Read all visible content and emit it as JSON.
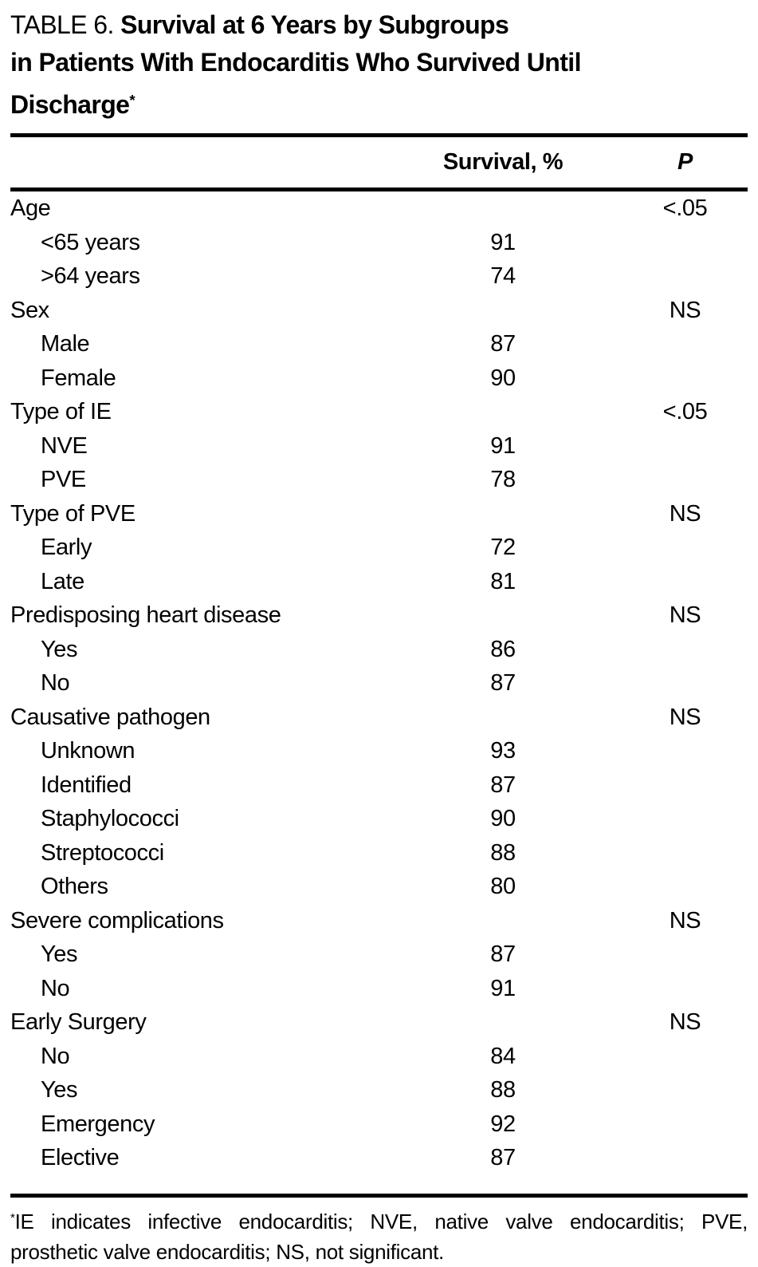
{
  "title": {
    "prefix": "TABLE 6. ",
    "line1": "Survival at 6 Years by Subgroups",
    "line2": "in Patients With Endocarditis Who Survived Until",
    "line3": "Discharge",
    "marker": "*"
  },
  "table": {
    "header": {
      "survival": "Survival, %",
      "p": "P"
    },
    "rows": [
      {
        "label": "Age",
        "indent": false,
        "survival": "",
        "p": "<.05"
      },
      {
        "label": "<65 years",
        "indent": true,
        "survival": "91",
        "p": ""
      },
      {
        "label": ">64 years",
        "indent": true,
        "survival": "74",
        "p": ""
      },
      {
        "label": "Sex",
        "indent": false,
        "survival": "",
        "p": "NS"
      },
      {
        "label": "Male",
        "indent": true,
        "survival": "87",
        "p": ""
      },
      {
        "label": "Female",
        "indent": true,
        "survival": "90",
        "p": ""
      },
      {
        "label": "Type of IE",
        "indent": false,
        "survival": "",
        "p": "<.05"
      },
      {
        "label": "NVE",
        "indent": true,
        "survival": "91",
        "p": ""
      },
      {
        "label": "PVE",
        "indent": true,
        "survival": "78",
        "p": ""
      },
      {
        "label": "Type of PVE",
        "indent": false,
        "survival": "",
        "p": "NS"
      },
      {
        "label": "Early",
        "indent": true,
        "survival": "72",
        "p": ""
      },
      {
        "label": "Late",
        "indent": true,
        "survival": "81",
        "p": ""
      },
      {
        "label": "Predisposing heart disease",
        "indent": false,
        "survival": "",
        "p": "NS"
      },
      {
        "label": "Yes",
        "indent": true,
        "survival": "86",
        "p": ""
      },
      {
        "label": "No",
        "indent": true,
        "survival": "87",
        "p": ""
      },
      {
        "label": "Causative pathogen",
        "indent": false,
        "survival": "",
        "p": "NS"
      },
      {
        "label": "Unknown",
        "indent": true,
        "survival": "93",
        "p": ""
      },
      {
        "label": "Identified",
        "indent": true,
        "survival": "87",
        "p": ""
      },
      {
        "label": "Staphylococci",
        "indent": true,
        "survival": "90",
        "p": ""
      },
      {
        "label": "Streptococci",
        "indent": true,
        "survival": "88",
        "p": ""
      },
      {
        "label": "Others",
        "indent": true,
        "survival": "80",
        "p": ""
      },
      {
        "label": "Severe complications",
        "indent": false,
        "survival": "",
        "p": "NS"
      },
      {
        "label": "Yes",
        "indent": true,
        "survival": "87",
        "p": ""
      },
      {
        "label": "No",
        "indent": true,
        "survival": "91",
        "p": ""
      },
      {
        "label": "Early Surgery",
        "indent": false,
        "survival": "",
        "p": "NS"
      },
      {
        "label": "No",
        "indent": true,
        "survival": "84",
        "p": ""
      },
      {
        "label": "Yes",
        "indent": true,
        "survival": "88",
        "p": ""
      },
      {
        "label": "Emergency",
        "indent": true,
        "survival": "92",
        "p": ""
      },
      {
        "label": "Elective",
        "indent": true,
        "survival": "87",
        "p": ""
      }
    ]
  },
  "footnote": {
    "marker": "*",
    "text": "IE indicates infective endocarditis; NVE, native valve endocarditis; PVE, prosthetic valve endocarditis; NS, not significant."
  }
}
